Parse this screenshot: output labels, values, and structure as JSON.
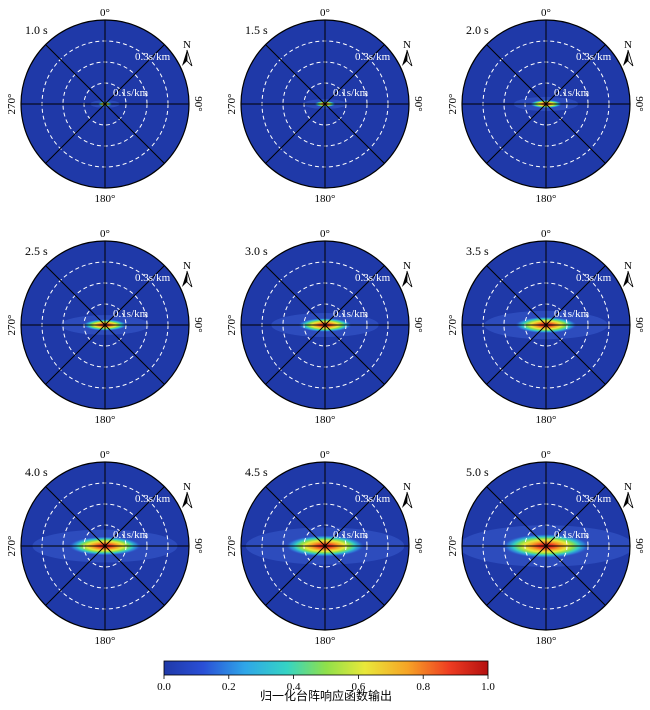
{
  "chart_data": {
    "type": "heatmap",
    "description_free": true,
    "panels": [
      {
        "time_label": "1.0 s",
        "peak_rx": 0.022,
        "peak_ry": 0.007
      },
      {
        "time_label": "1.5 s",
        "peak_rx": 0.032,
        "peak_ry": 0.009
      },
      {
        "time_label": "2.0 s",
        "peak_rx": 0.048,
        "peak_ry": 0.013
      },
      {
        "time_label": "2.5 s",
        "peak_rx": 0.066,
        "peak_ry": 0.018
      },
      {
        "time_label": "3.0 s",
        "peak_rx": 0.08,
        "peak_ry": 0.022
      },
      {
        "time_label": "3.5 s",
        "peak_rx": 0.092,
        "peak_ry": 0.026
      },
      {
        "time_label": "4.0 s",
        "peak_rx": 0.108,
        "peak_ry": 0.03
      },
      {
        "time_label": "4.5 s",
        "peak_rx": 0.118,
        "peak_ry": 0.034
      },
      {
        "time_label": "5.0 s",
        "peak_rx": 0.13,
        "peak_ry": 0.038
      }
    ],
    "azimuth_labels": {
      "top": "0°",
      "right": "90°",
      "bottom": "180°",
      "left": "270°"
    },
    "ring_labels": [
      "0.1s/km",
      "0.3s/km"
    ],
    "ring_values_s_per_km": [
      0.1,
      0.2,
      0.3
    ],
    "max_slowness_s_per_km": 0.4,
    "north_label": "N",
    "colorbar": {
      "label": "归一化台阵响应函数输出",
      "ticks": [
        "0.0",
        "0.2",
        "0.4",
        "0.6",
        "0.8",
        "1.0"
      ],
      "range": [
        0,
        1
      ]
    }
  },
  "colors": {
    "background_field": "#1f39a8",
    "ring_dash": "#ffffff",
    "axis_line": "#000000"
  }
}
